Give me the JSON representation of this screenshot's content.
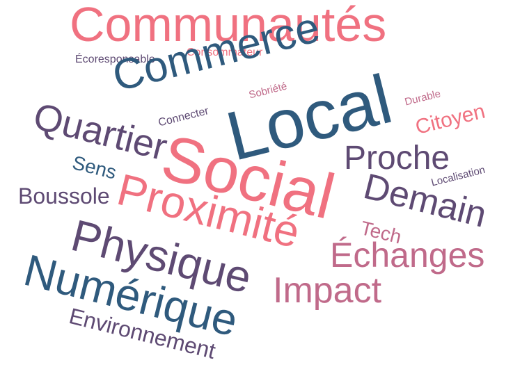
{
  "words": [
    {
      "text": "Communautés",
      "color": "#f07180"
    },
    {
      "text": "Écoresponsable",
      "color": "#5e4a73"
    },
    {
      "text": "Consommateur",
      "color": "#f07180"
    },
    {
      "text": "Commerce",
      "color": "#2f5a7d"
    },
    {
      "text": "Sobriété",
      "color": "#c06a8a"
    },
    {
      "text": "Durable",
      "color": "#c06a8a"
    },
    {
      "text": "Connecter",
      "color": "#5e4a73"
    },
    {
      "text": "Local",
      "color": "#2f5a7d"
    },
    {
      "text": "Quartier",
      "color": "#5e4a73"
    },
    {
      "text": "Citoyen",
      "color": "#f07180"
    },
    {
      "text": "Social",
      "color": "#f07180"
    },
    {
      "text": "Sens",
      "color": "#2f5a7d"
    },
    {
      "text": "Proche",
      "color": "#5e4a73"
    },
    {
      "text": "Localisation",
      "color": "#5e4a73"
    },
    {
      "text": "Boussole",
      "color": "#5e4a73"
    },
    {
      "text": "Proximité",
      "color": "#f07180"
    },
    {
      "text": "Demain",
      "color": "#5e4a73"
    },
    {
      "text": "Tech",
      "color": "#c06a8a"
    },
    {
      "text": "Physique",
      "color": "#5e4a73"
    },
    {
      "text": "Échanges",
      "color": "#c06a8a"
    },
    {
      "text": "Numérique",
      "color": "#2f5a7d"
    },
    {
      "text": "Impact",
      "color": "#c06a8a"
    },
    {
      "text": "Environnement",
      "color": "#5e4a73"
    }
  ]
}
